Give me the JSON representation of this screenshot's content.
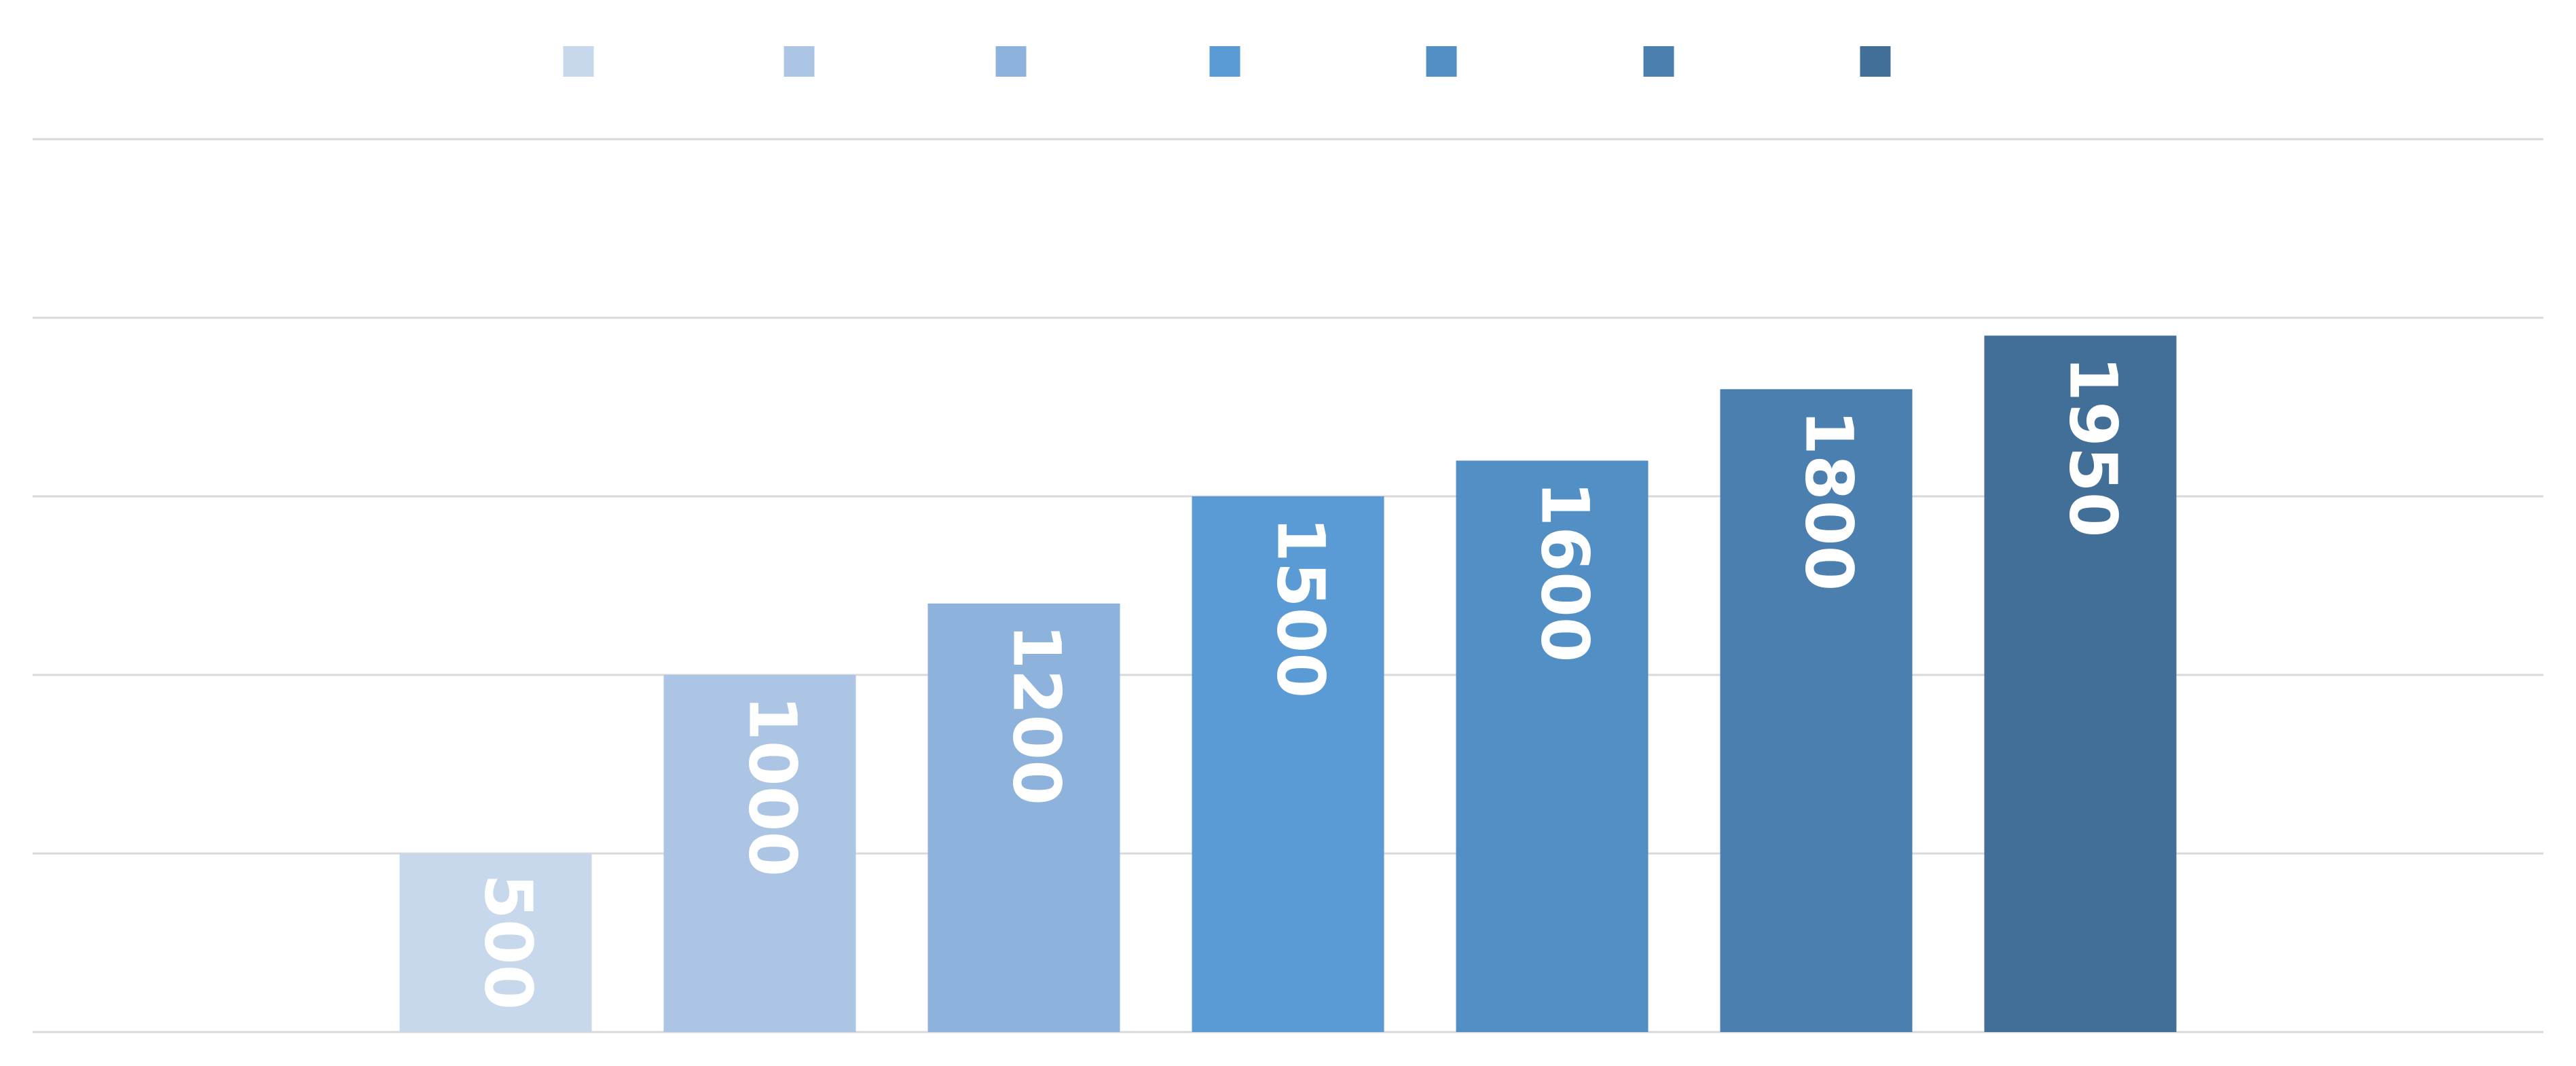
{
  "chart_data": {
    "type": "bar",
    "title": "",
    "xlabel": "",
    "ylabel": "",
    "categories": [
      "",
      "",
      "",
      "",
      "",
      "",
      ""
    ],
    "series": [
      {
        "values": [
          500,
          1000,
          1200,
          1500,
          1600,
          1800,
          1950
        ]
      }
    ],
    "data_labels": [
      "500",
      "1000",
      "1200",
      "1500",
      "1600",
      "1800",
      "1950"
    ],
    "colors": [
      "#c7d7ec",
      "#adc5e5",
      "#8db2dc",
      "#5b9bd5",
      "#528fc5",
      "#4a7fb0",
      "#416f98"
    ],
    "ylim": [
      0,
      2500
    ],
    "grid_step": 500,
    "grid": true,
    "legend": "top-center",
    "legend_entries": [
      "",
      "",
      "",
      "",
      "",
      "",
      ""
    ],
    "data_label_orientation": "rotated-90-clockwise"
  }
}
